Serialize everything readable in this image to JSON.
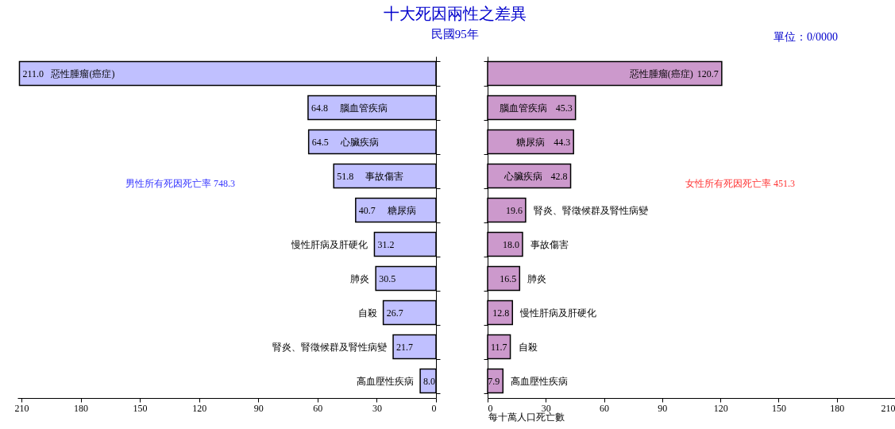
{
  "chart_data": [
    {
      "type": "bar",
      "orientation": "horizontal",
      "title": "十大死因兩性之差異",
      "subtitle": "民國95年",
      "categories": [
        "惡性腫瘤(癌症)",
        "腦血管疾病",
        "心臟疾病",
        "事故傷害",
        "糖尿病",
        "慢性肝病及肝硬化",
        "肺炎",
        "自殺",
        "腎炎、腎徵候群及腎性病變",
        "高血壓性疾病"
      ],
      "values": [
        211.0,
        64.8,
        64.5,
        51.8,
        40.7,
        31.2,
        30.5,
        26.7,
        21.7,
        8.0
      ],
      "value_labels": [
        "211.0",
        "64.8",
        "64.5",
        "51.8",
        "40.7",
        "31.2",
        "30.5",
        "26.7",
        "21.7",
        "8.0"
      ],
      "color": "#c0c0ff",
      "xlim": [
        212,
        0
      ],
      "xticks": [
        210,
        180,
        150,
        120,
        90,
        60,
        30,
        0
      ],
      "tick_labels": "x",
      "grid": false,
      "legend": false,
      "annotations": [
        "男性所有死因死亡率 748.3"
      ]
    },
    {
      "type": "bar",
      "orientation": "horizontal",
      "xlabel": "每十萬人口死亡數",
      "categories": [
        "惡性腫瘤(癌症)",
        "腦血管疾病",
        "糖尿病",
        "心臟疾病",
        "腎炎、腎徵候群及腎性病變",
        "事故傷害",
        "肺炎",
        "慢性肝病及肝硬化",
        "自殺",
        "高血壓性疾病"
      ],
      "values": [
        120.7,
        45.3,
        44.3,
        42.8,
        19.6,
        18.0,
        16.5,
        12.8,
        11.7,
        7.9
      ],
      "value_labels": [
        "120.7",
        "45.3",
        "44.3",
        "42.8",
        "19.6",
        "18.0",
        "16.5",
        "12.8",
        "11.7",
        "7.9"
      ],
      "color": "#cc99cc",
      "xlim": [
        0,
        210
      ],
      "xticks": [
        0,
        30,
        60,
        90,
        120,
        150,
        180,
        210
      ],
      "tick_labels": "x",
      "grid": false,
      "legend": false,
      "annotations": [
        "女性所有死因死亡率 451.3",
        "單位：0/0000"
      ]
    }
  ]
}
